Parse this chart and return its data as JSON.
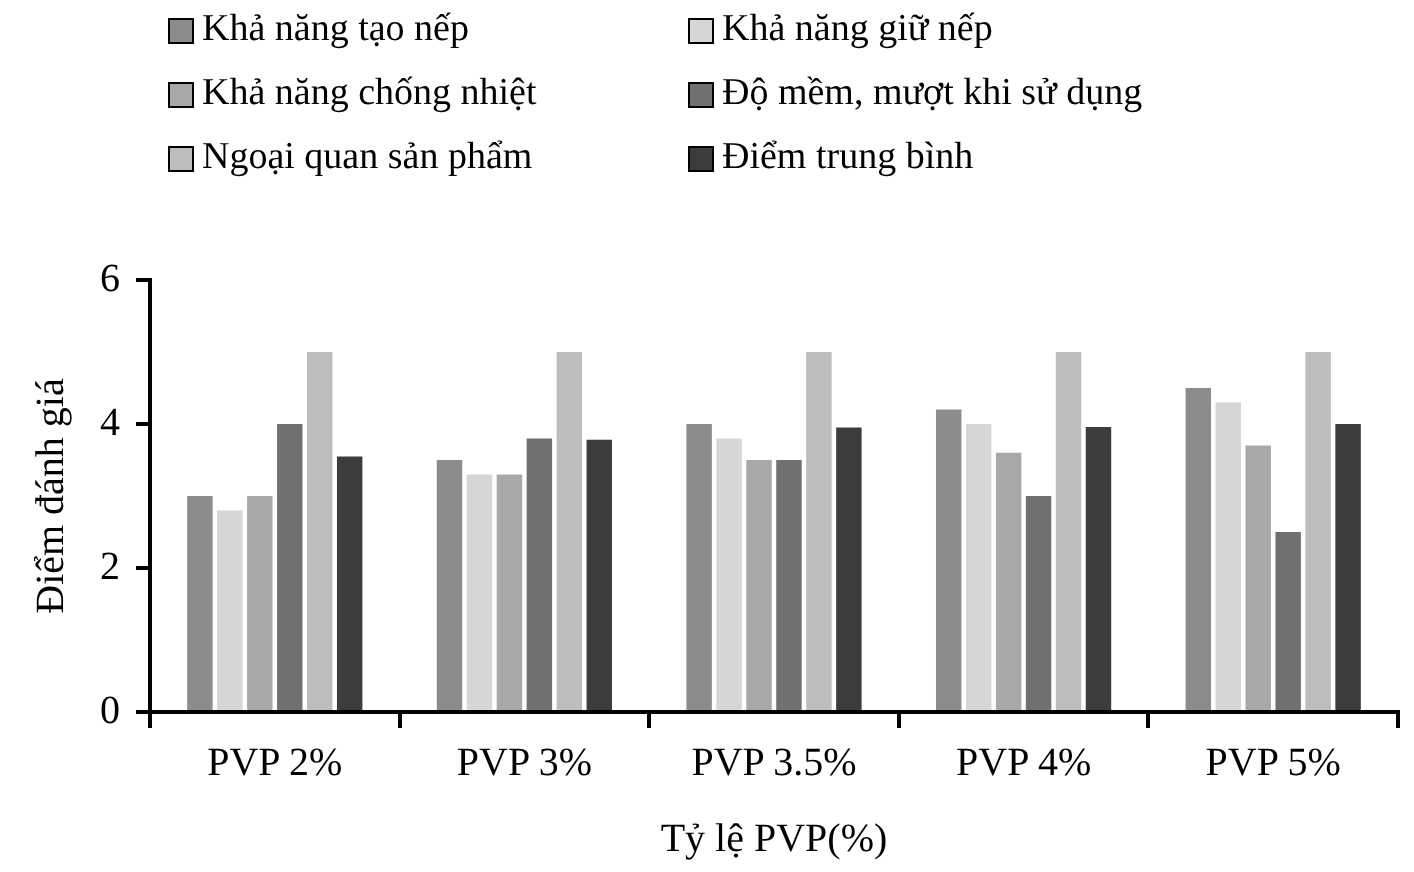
{
  "chart_data": {
    "type": "bar",
    "xlabel": "Tỷ lệ PVP(%)",
    "ylabel": "Điểm đánh giá",
    "categories": [
      "PVP 2%",
      "PVP 3%",
      "PVP 3.5%",
      "PVP 4%",
      "PVP 5%"
    ],
    "series": [
      {
        "name": "Khả năng tạo nếp",
        "color": "#8c8c8c",
        "values": [
          3.0,
          3.5,
          4.0,
          4.2,
          4.5
        ]
      },
      {
        "name": "Khả năng giữ nếp",
        "color": "#d6d6d6",
        "values": [
          2.8,
          3.3,
          3.8,
          4.0,
          4.3
        ]
      },
      {
        "name": "Khả năng chống nhiệt",
        "color": "#a8a8a8",
        "values": [
          3.0,
          3.3,
          3.5,
          3.6,
          3.7
        ]
      },
      {
        "name": "Độ mềm, mượt khi sử dụng",
        "color": "#707070",
        "values": [
          4.0,
          3.8,
          3.5,
          3.0,
          2.5
        ]
      },
      {
        "name": "Ngoại quan sản phẩm",
        "color": "#bdbdbd",
        "values": [
          5.0,
          5.0,
          5.0,
          5.0,
          5.0
        ]
      },
      {
        "name": "Điểm trung bình",
        "color": "#3c3c3c",
        "values": [
          3.55,
          3.78,
          3.95,
          3.96,
          4.0
        ]
      }
    ],
    "ylim": [
      0,
      6
    ],
    "yticks": [
      0,
      2,
      4,
      6
    ],
    "grid": false,
    "legend": "top"
  }
}
